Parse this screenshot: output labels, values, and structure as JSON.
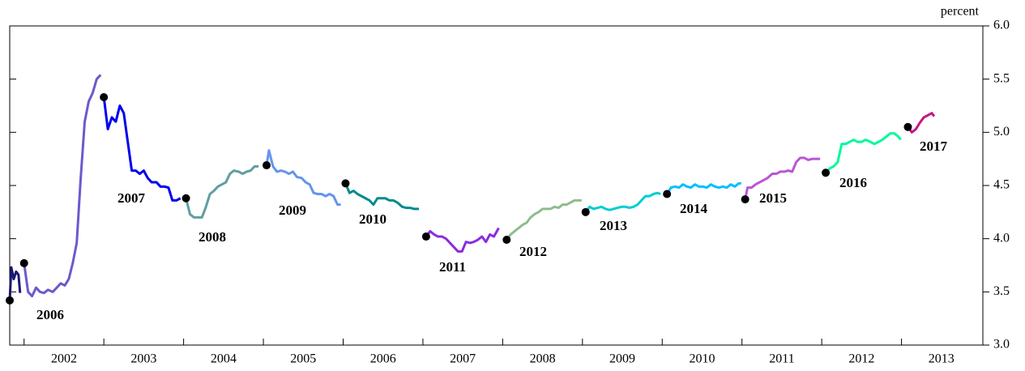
{
  "chart_data": {
    "type": "line",
    "y_label": "percent",
    "xlim": [
      2001.82,
      2014.02
    ],
    "ylim": [
      3,
      6
    ],
    "xticks": [
      {
        "value": 2002.5,
        "label": "2002"
      },
      {
        "value": 2003.5,
        "label": "2003"
      },
      {
        "value": 2004.5,
        "label": "2004"
      },
      {
        "value": 2005.5,
        "label": "2005"
      },
      {
        "value": 2006.5,
        "label": "2006"
      },
      {
        "value": 2007.5,
        "label": "2007"
      },
      {
        "value": 2008.5,
        "label": "2008"
      },
      {
        "value": 2009.5,
        "label": "2009"
      },
      {
        "value": 2010.5,
        "label": "2010"
      },
      {
        "value": 2011.5,
        "label": "2011"
      },
      {
        "value": 2012.5,
        "label": "2012"
      },
      {
        "value": 2013.5,
        "label": "2013"
      }
    ],
    "yticks": [
      {
        "value": 3,
        "label": "3.0"
      },
      3.5,
      {
        "value": 4,
        "label": "4.0"
      },
      4.5,
      {
        "value": 5,
        "label": "5.0"
      },
      5.5,
      {
        "value": 6,
        "label": "6.0"
      }
    ],
    "series": [
      {
        "name": null,
        "color": "#191970",
        "x": [
          2001.82,
          2001.84,
          2001.87,
          2001.9,
          2001.93,
          2001.95
        ],
        "values": [
          3.42,
          3.73,
          3.62,
          3.69,
          3.66,
          3.49
        ]
      },
      {
        "name": "2006",
        "color": "#6a5acd",
        "x": [
          2002.0,
          2002.05,
          2002.1,
          2002.15,
          2002.2,
          2002.25,
          2002.3,
          2002.36,
          2002.41,
          2002.46,
          2002.51,
          2002.56,
          2002.61,
          2002.66,
          2002.71,
          2002.76,
          2002.81,
          2002.86,
          2002.91,
          2002.96
        ],
        "values": [
          3.77,
          3.5,
          3.46,
          3.54,
          3.5,
          3.49,
          3.52,
          3.5,
          3.54,
          3.58,
          3.56,
          3.62,
          3.77,
          3.96,
          4.57,
          5.1,
          5.29,
          5.37,
          5.5,
          5.54
        ]
      },
      {
        "name": "2007",
        "color": "#0000ee",
        "x": [
          2003.0,
          2003.05,
          2003.1,
          2003.15,
          2003.2,
          2003.25,
          2003.3,
          2003.35,
          2003.4,
          2003.45,
          2003.5,
          2003.55,
          2003.6,
          2003.66,
          2003.71,
          2003.76,
          2003.81,
          2003.86,
          2003.91,
          2003.96
        ],
        "values": [
          5.33,
          5.03,
          5.14,
          5.1,
          5.25,
          5.18,
          4.91,
          4.64,
          4.64,
          4.61,
          4.64,
          4.57,
          4.53,
          4.53,
          4.49,
          4.49,
          4.48,
          4.36,
          4.36,
          4.38
        ]
      },
      {
        "name": "2008",
        "color": "#5f9ea0",
        "x": [
          2004.03,
          2004.08,
          2004.13,
          2004.18,
          2004.23,
          2004.28,
          2004.33,
          2004.38,
          2004.43,
          2004.48,
          2004.53,
          2004.58,
          2004.63,
          2004.69,
          2004.74,
          2004.79,
          2004.84,
          2004.89,
          2004.94
        ],
        "values": [
          4.38,
          4.23,
          4.2,
          4.2,
          4.2,
          4.3,
          4.42,
          4.45,
          4.49,
          4.51,
          4.53,
          4.61,
          4.64,
          4.63,
          4.61,
          4.63,
          4.64,
          4.68,
          4.68
        ]
      },
      {
        "name": "2009",
        "color": "#6495ed",
        "x": [
          2005.04,
          2005.07,
          2005.12,
          2005.17,
          2005.22,
          2005.27,
          2005.32,
          2005.37,
          2005.42,
          2005.48,
          2005.53,
          2005.58,
          2005.63,
          2005.68,
          2005.73,
          2005.78,
          2005.83,
          2005.88,
          2005.93,
          2005.97
        ],
        "values": [
          4.69,
          4.83,
          4.68,
          4.63,
          4.64,
          4.63,
          4.61,
          4.63,
          4.58,
          4.57,
          4.53,
          4.51,
          4.43,
          4.42,
          4.42,
          4.4,
          4.42,
          4.4,
          4.32,
          4.32
        ]
      },
      {
        "name": "2010",
        "color": "#008b8b",
        "x": [
          2006.03,
          2006.08,
          2006.13,
          2006.18,
          2006.23,
          2006.28,
          2006.33,
          2006.38,
          2006.43,
          2006.48,
          2006.53,
          2006.58,
          2006.63,
          2006.68,
          2006.74,
          2006.79,
          2006.84,
          2006.89,
          2006.95
        ],
        "values": [
          4.52,
          4.43,
          4.45,
          4.42,
          4.4,
          4.38,
          4.36,
          4.32,
          4.38,
          4.38,
          4.38,
          4.36,
          4.36,
          4.34,
          4.3,
          4.29,
          4.29,
          4.28,
          4.28
        ]
      },
      {
        "name": "2011",
        "color": "#8a2be2",
        "x": [
          2007.04,
          2007.09,
          2007.14,
          2007.19,
          2007.24,
          2007.29,
          2007.34,
          2007.39,
          2007.44,
          2007.49,
          2007.54,
          2007.59,
          2007.64,
          2007.69,
          2007.74,
          2007.79,
          2007.84,
          2007.89,
          2007.95
        ],
        "values": [
          4.02,
          4.07,
          4.04,
          4.02,
          4.02,
          4.0,
          3.96,
          3.92,
          3.88,
          3.88,
          3.97,
          3.96,
          3.97,
          3.99,
          4.02,
          3.97,
          4.04,
          4.02,
          4.1
        ]
      },
      {
        "name": "2012",
        "color": "#8fbc8f",
        "x": [
          2008.05,
          2008.1,
          2008.15,
          2008.2,
          2008.25,
          2008.3,
          2008.35,
          2008.4,
          2008.45,
          2008.5,
          2008.55,
          2008.6,
          2008.65,
          2008.7,
          2008.75,
          2008.8,
          2008.85,
          2008.9,
          2008.95,
          2008.99
        ],
        "values": [
          3.99,
          4.04,
          4.07,
          4.1,
          4.13,
          4.15,
          4.2,
          4.23,
          4.25,
          4.28,
          4.28,
          4.28,
          4.3,
          4.29,
          4.32,
          4.32,
          4.34,
          4.36,
          4.36,
          4.36
        ]
      },
      {
        "name": "2013",
        "color": "#00ced1",
        "x": [
          2009.04,
          2009.09,
          2009.14,
          2009.19,
          2009.24,
          2009.29,
          2009.34,
          2009.39,
          2009.44,
          2009.49,
          2009.54,
          2009.59,
          2009.64,
          2009.69,
          2009.74,
          2009.79,
          2009.84,
          2009.89,
          2009.94,
          2009.98
        ],
        "values": [
          4.25,
          4.3,
          4.28,
          4.29,
          4.3,
          4.28,
          4.27,
          4.28,
          4.29,
          4.3,
          4.3,
          4.29,
          4.3,
          4.32,
          4.36,
          4.4,
          4.4,
          4.42,
          4.43,
          4.42
        ]
      },
      {
        "name": "2014",
        "color": "#00bfff",
        "x": [
          2010.06,
          2010.11,
          2010.16,
          2010.21,
          2010.26,
          2010.31,
          2010.36,
          2010.41,
          2010.46,
          2010.51,
          2010.56,
          2010.61,
          2010.66,
          2010.71,
          2010.76,
          2010.81,
          2010.86,
          2010.91,
          2010.96,
          2010.99
        ],
        "values": [
          4.42,
          4.48,
          4.49,
          4.48,
          4.51,
          4.49,
          4.48,
          4.51,
          4.49,
          4.49,
          4.48,
          4.51,
          4.49,
          4.48,
          4.49,
          4.48,
          4.51,
          4.49,
          4.52,
          4.52
        ]
      },
      {
        "name": "2015",
        "color": "#ba55d3",
        "x": [
          2011.04,
          2011.07,
          2011.12,
          2011.17,
          2011.22,
          2011.27,
          2011.32,
          2011.38,
          2011.43,
          2011.48,
          2011.53,
          2011.58,
          2011.63,
          2011.68,
          2011.73,
          2011.78,
          2011.83,
          2011.88,
          2011.93,
          2011.98
        ],
        "values": [
          4.37,
          4.48,
          4.48,
          4.51,
          4.53,
          4.55,
          4.57,
          4.61,
          4.61,
          4.63,
          4.63,
          4.64,
          4.63,
          4.72,
          4.76,
          4.76,
          4.74,
          4.75,
          4.75,
          4.75
        ]
      },
      {
        "name": "2016",
        "color": "#00fa9a",
        "x": [
          2012.05,
          2012.1,
          2012.15,
          2012.2,
          2012.25,
          2012.3,
          2012.35,
          2012.4,
          2012.45,
          2012.5,
          2012.55,
          2012.61,
          2012.66,
          2012.71,
          2012.76,
          2012.81,
          2012.86,
          2012.91,
          2012.96,
          2012.99
        ],
        "values": [
          4.62,
          4.66,
          4.68,
          4.72,
          4.89,
          4.89,
          4.91,
          4.93,
          4.91,
          4.91,
          4.93,
          4.91,
          4.89,
          4.91,
          4.93,
          4.96,
          4.99,
          4.99,
          4.96,
          4.93
        ]
      },
      {
        "name": "2017",
        "color": "#c71585",
        "x": [
          2013.08,
          2013.13,
          2013.18,
          2013.23,
          2013.28,
          2013.33,
          2013.38,
          2013.41
        ],
        "values": [
          5.05,
          5.0,
          5.03,
          5.09,
          5.14,
          5.16,
          5.18,
          5.15
        ]
      }
    ]
  }
}
